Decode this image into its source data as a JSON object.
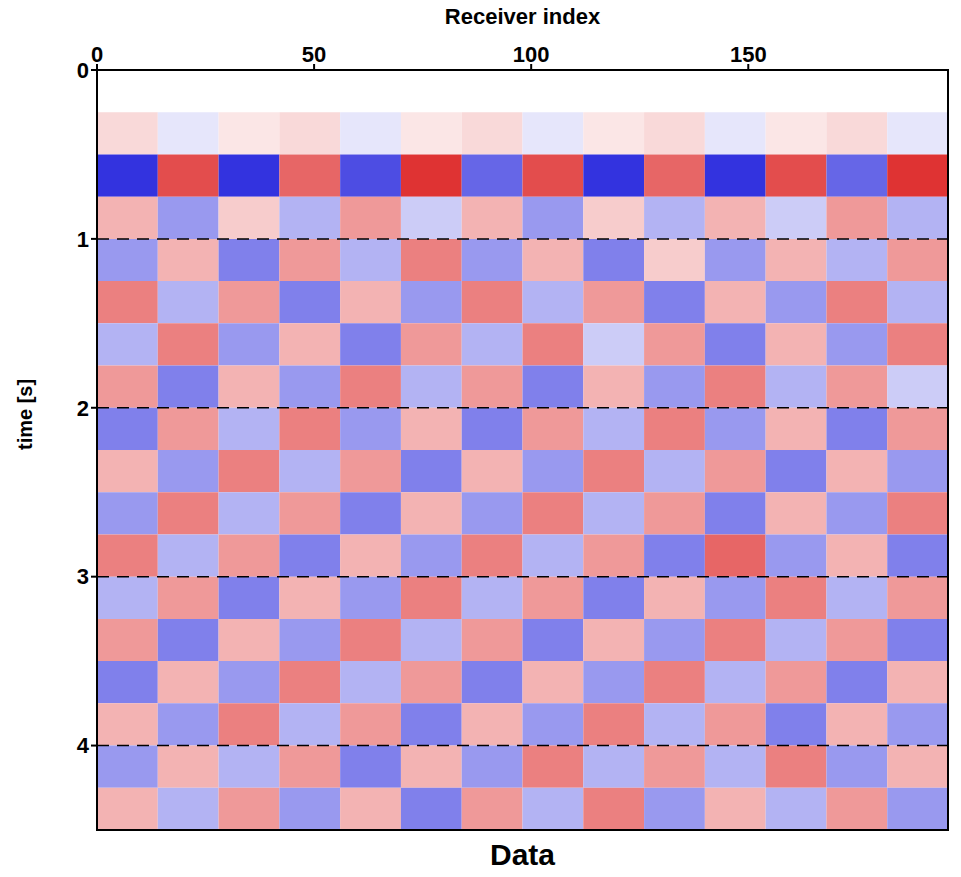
{
  "chart_data": {
    "type": "heatmap",
    "title": "Data",
    "x_label": "Receiver index",
    "y_label": "time [s]",
    "xlim": [
      0,
      196
    ],
    "xticks": [
      0,
      50,
      100,
      150
    ],
    "ylim": [
      0,
      4.5
    ],
    "yticks": [
      0,
      1,
      2,
      3,
      4
    ],
    "grid": true,
    "color_range": [
      -1,
      1
    ],
    "x_edges": [
      0,
      14,
      28,
      42,
      56,
      70,
      84,
      98,
      112,
      126,
      140,
      154,
      168,
      182,
      196
    ],
    "y_edges": [
      0,
      0.25,
      0.5,
      0.75,
      1,
      1.25,
      1.5,
      1.75,
      2,
      2.25,
      2.5,
      2.75,
      3,
      3.25,
      3.5,
      3.75,
      4,
      4.25,
      4.5
    ],
    "cells": [
      [
        0,
        0,
        0,
        0,
        0,
        0,
        0,
        0,
        0,
        0,
        0,
        0,
        0,
        0
      ],
      [
        0.15,
        -0.1,
        0.1,
        0.15,
        -0.1,
        0.1,
        0.15,
        -0.1,
        0.1,
        0.15,
        -0.1,
        0.1,
        0.15,
        -0.1
      ],
      [
        -0.8,
        0.7,
        -0.8,
        0.6,
        -0.7,
        0.8,
        -0.6,
        0.7,
        -0.8,
        0.6,
        -0.8,
        0.7,
        -0.6,
        0.8
      ],
      [
        0.3,
        -0.4,
        0.2,
        -0.3,
        0.4,
        -0.2,
        0.3,
        -0.4,
        0.2,
        -0.3,
        0.3,
        -0.2,
        0.4,
        -0.3
      ],
      [
        -0.4,
        0.3,
        -0.5,
        0.4,
        -0.3,
        0.5,
        -0.4,
        0.3,
        -0.5,
        0.2,
        -0.4,
        0.3,
        -0.3,
        0.4
      ],
      [
        0.5,
        -0.3,
        0.4,
        -0.5,
        0.3,
        -0.4,
        0.5,
        -0.3,
        0.4,
        -0.5,
        0.3,
        -0.4,
        0.5,
        -0.3
      ],
      [
        -0.3,
        0.5,
        -0.4,
        0.3,
        -0.5,
        0.4,
        -0.3,
        0.5,
        -0.2,
        0.4,
        -0.5,
        0.3,
        -0.4,
        0.5
      ],
      [
        0.4,
        -0.5,
        0.3,
        -0.4,
        0.5,
        -0.3,
        0.4,
        -0.5,
        0.3,
        -0.4,
        0.5,
        -0.3,
        0.4,
        -0.2
      ],
      [
        -0.5,
        0.4,
        -0.3,
        0.5,
        -0.4,
        0.3,
        -0.5,
        0.4,
        -0.3,
        0.5,
        -0.4,
        0.3,
        -0.5,
        0.4
      ],
      [
        0.3,
        -0.4,
        0.5,
        -0.3,
        0.4,
        -0.5,
        0.3,
        -0.4,
        0.5,
        -0.3,
        0.4,
        -0.5,
        0.3,
        -0.4
      ],
      [
        -0.4,
        0.5,
        -0.3,
        0.4,
        -0.5,
        0.3,
        -0.4,
        0.5,
        -0.3,
        0.4,
        -0.5,
        0.3,
        -0.4,
        0.5
      ],
      [
        0.5,
        -0.3,
        0.4,
        -0.5,
        0.3,
        -0.4,
        0.5,
        -0.3,
        0.4,
        -0.5,
        0.6,
        -0.4,
        0.3,
        -0.5
      ],
      [
        -0.3,
        0.4,
        -0.5,
        0.3,
        -0.4,
        0.5,
        -0.3,
        0.4,
        -0.5,
        0.3,
        -0.4,
        0.5,
        -0.3,
        0.4
      ],
      [
        0.4,
        -0.5,
        0.3,
        -0.4,
        0.5,
        -0.3,
        0.4,
        -0.5,
        0.3,
        -0.4,
        0.5,
        -0.3,
        0.4,
        -0.5
      ],
      [
        -0.5,
        0.3,
        -0.4,
        0.5,
        -0.3,
        0.4,
        -0.5,
        0.3,
        -0.4,
        0.5,
        -0.3,
        0.4,
        -0.5,
        0.3
      ],
      [
        0.3,
        -0.4,
        0.5,
        -0.3,
        0.4,
        -0.5,
        0.3,
        -0.4,
        0.5,
        -0.3,
        0.4,
        -0.5,
        0.3,
        -0.4
      ],
      [
        -0.4,
        0.3,
        -0.3,
        0.4,
        -0.5,
        0.3,
        -0.4,
        0.5,
        -0.3,
        0.4,
        -0.3,
        0.5,
        -0.4,
        0.3
      ],
      [
        0.3,
        -0.3,
        0.4,
        -0.4,
        0.3,
        -0.5,
        0.4,
        -0.3,
        0.5,
        -0.4,
        0.3,
        -0.3,
        0.4,
        -0.4
      ]
    ]
  }
}
